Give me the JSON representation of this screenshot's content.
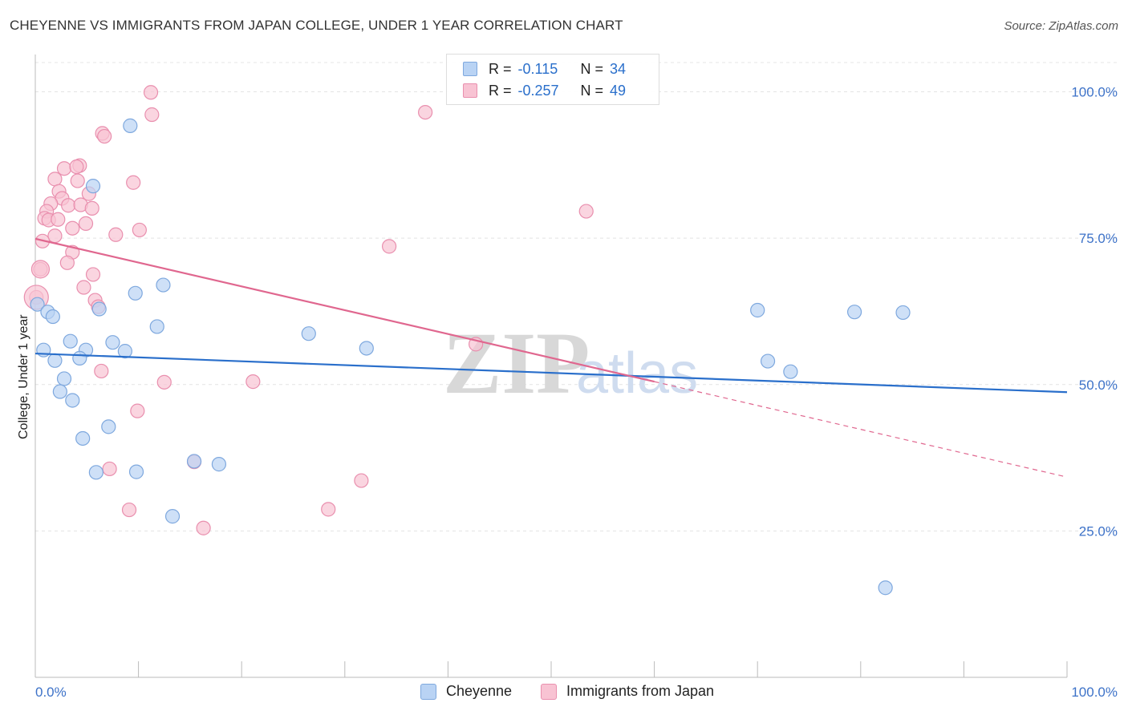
{
  "header": {
    "title": "CHEYENNE VS IMMIGRANTS FROM JAPAN COLLEGE, UNDER 1 YEAR CORRELATION CHART",
    "source": "Source: ZipAtlas.com"
  },
  "watermark": {
    "zip": "ZIP",
    "atlas": "atlas"
  },
  "legend": {
    "rows": [
      {
        "r_label": "R =",
        "r_value": "-0.115",
        "n_label": "N =",
        "n_value": "34"
      },
      {
        "r_label": "R =",
        "r_value": "-0.257",
        "n_label": "N =",
        "n_value": "49"
      }
    ]
  },
  "bottom_legend": {
    "series1": "Cheyenne",
    "series2": "Immigrants from Japan"
  },
  "colors": {
    "blue_fill": "#b9d3f4",
    "blue_stroke": "#7ea8de",
    "blue_line": "#2a6fcb",
    "pink_fill": "#f8c3d3",
    "pink_stroke": "#e98fae",
    "pink_line": "#e0678f",
    "tick_blue": "#3d72c8",
    "grid": "#e4e4e4"
  },
  "chart_data": {
    "type": "scatter",
    "title": "CHEYENNE VS IMMIGRANTS FROM JAPAN COLLEGE, UNDER 1 YEAR CORRELATION CHART",
    "xlabel": "",
    "ylabel": "College, Under 1 year",
    "xlim": [
      0,
      100
    ],
    "ylim": [
      0,
      105
    ],
    "x_tick_labels": [
      "0.0%",
      "100.0%"
    ],
    "y_ticks": [
      25,
      50,
      75,
      100
    ],
    "y_tick_labels": [
      "25.0%",
      "50.0%",
      "75.0%",
      "100.0%"
    ],
    "grid": true,
    "series": [
      {
        "name": "Cheyenne",
        "r": -0.115,
        "n": 34,
        "trend": {
          "x0": 0,
          "y0": 55.3,
          "x1": 100,
          "y1": 48.7
        },
        "points": [
          [
            9.2,
            94.2
          ],
          [
            5.6,
            83.9
          ],
          [
            12.4,
            67.0
          ],
          [
            9.7,
            65.6
          ],
          [
            0.2,
            63.7
          ],
          [
            1.2,
            62.4
          ],
          [
            6.2,
            62.9
          ],
          [
            1.7,
            61.6
          ],
          [
            11.8,
            59.9
          ],
          [
            26.5,
            58.7
          ],
          [
            3.4,
            57.4
          ],
          [
            7.5,
            57.2
          ],
          [
            0.8,
            55.9
          ],
          [
            4.9,
            55.9
          ],
          [
            8.7,
            55.7
          ],
          [
            32.1,
            56.2
          ],
          [
            1.9,
            54.1
          ],
          [
            4.3,
            54.5
          ],
          [
            2.8,
            51.0
          ],
          [
            2.4,
            48.8
          ],
          [
            3.6,
            47.3
          ],
          [
            7.1,
            42.8
          ],
          [
            4.6,
            40.8
          ],
          [
            15.4,
            36.9
          ],
          [
            17.8,
            36.4
          ],
          [
            5.9,
            35.0
          ],
          [
            9.8,
            35.1
          ],
          [
            13.3,
            27.5
          ],
          [
            71.0,
            54.0
          ],
          [
            73.2,
            52.2
          ],
          [
            70.0,
            62.7
          ],
          [
            79.4,
            62.4
          ],
          [
            84.1,
            62.3
          ],
          [
            82.4,
            15.3
          ]
        ]
      },
      {
        "name": "Immigrants from Japan",
        "r": -0.257,
        "n": 49,
        "trend": {
          "x0": 0,
          "y0": 74.9,
          "x1": 60,
          "y1": 50.5,
          "dash_x1": 100,
          "dash_y1": 34.2
        },
        "points": [
          [
            11.2,
            99.9
          ],
          [
            11.3,
            96.1
          ],
          [
            37.8,
            96.5
          ],
          [
            6.5,
            92.9
          ],
          [
            6.7,
            92.4
          ],
          [
            4.3,
            87.4
          ],
          [
            2.8,
            86.9
          ],
          [
            4.0,
            87.2
          ],
          [
            1.9,
            85.1
          ],
          [
            4.1,
            84.8
          ],
          [
            9.5,
            84.5
          ],
          [
            2.3,
            83.0
          ],
          [
            5.2,
            82.6
          ],
          [
            2.6,
            81.8
          ],
          [
            1.5,
            80.9
          ],
          [
            3.2,
            80.6
          ],
          [
            4.4,
            80.7
          ],
          [
            5.5,
            80.1
          ],
          [
            1.1,
            79.6
          ],
          [
            53.4,
            79.6
          ],
          [
            0.9,
            78.4
          ],
          [
            1.3,
            78.1
          ],
          [
            2.2,
            78.2
          ],
          [
            4.9,
            77.5
          ],
          [
            3.6,
            76.7
          ],
          [
            10.1,
            76.4
          ],
          [
            7.8,
            75.6
          ],
          [
            1.9,
            75.4
          ],
          [
            0.7,
            74.5
          ],
          [
            34.3,
            73.6
          ],
          [
            3.6,
            72.6
          ],
          [
            3.1,
            70.8
          ],
          [
            0.5,
            69.7
          ],
          [
            5.6,
            68.8
          ],
          [
            4.7,
            66.6
          ],
          [
            0.1,
            64.9
          ],
          [
            5.8,
            64.4
          ],
          [
            6.1,
            63.3
          ],
          [
            42.7,
            56.9
          ],
          [
            6.4,
            52.3
          ],
          [
            12.5,
            50.4
          ],
          [
            21.1,
            50.5
          ],
          [
            9.9,
            45.5
          ],
          [
            7.2,
            35.6
          ],
          [
            15.4,
            36.8
          ],
          [
            31.6,
            33.6
          ],
          [
            9.1,
            28.6
          ],
          [
            28.4,
            28.7
          ],
          [
            16.3,
            25.5
          ]
        ]
      }
    ]
  }
}
